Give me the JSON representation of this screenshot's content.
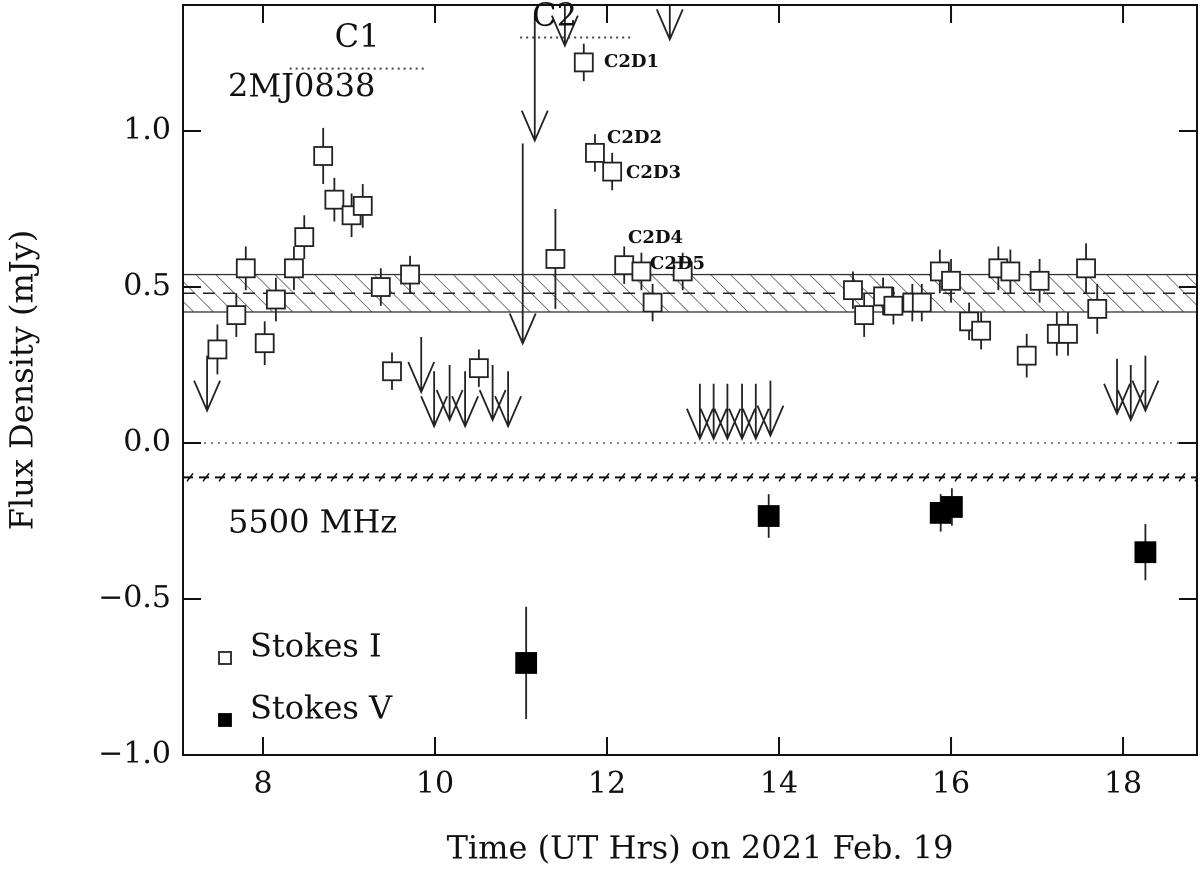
{
  "chart_data": {
    "type": "scatter",
    "xlabel": "Time (UT Hrs) on 2021 Feb. 19",
    "ylabel": "Flux Density (mJy)",
    "xlim": [
      7.07,
      18.86
    ],
    "ylim": [
      -1.0,
      1.404
    ],
    "xticks": [
      8,
      10,
      12,
      14,
      16,
      18
    ],
    "yticks": [
      {
        "value": -1.0,
        "label": "−1.0"
      },
      {
        "value": -0.5,
        "label": "−0.5"
      },
      {
        "value": 0.0,
        "label": "0.0"
      },
      0.5,
      {
        "value": 1.0,
        "label": "1.0"
      }
    ],
    "legend": "lower left",
    "series": [
      {
        "name": "Stokes I",
        "marker": "open-square",
        "color": "#222",
        "x": [
          7.47,
          7.69,
          7.8,
          8.02,
          8.15,
          8.36,
          8.48,
          8.7,
          8.83,
          9.03,
          9.16,
          9.37,
          9.5,
          9.71,
          10.51,
          11.4,
          11.73,
          11.86,
          12.06,
          12.2,
          12.4,
          12.53,
          12.88,
          14.86,
          14.99,
          15.21,
          15.33,
          15.55,
          15.66,
          15.87,
          16.0,
          16.21,
          16.35,
          16.55,
          16.69,
          16.88,
          17.03,
          17.23,
          17.36,
          17.57,
          17.7
        ],
        "values": [
          0.3,
          0.41,
          0.56,
          0.32,
          0.46,
          0.56,
          0.66,
          0.92,
          0.78,
          0.73,
          0.76,
          0.5,
          0.23,
          0.54,
          0.24,
          0.59,
          1.22,
          0.93,
          0.87,
          0.57,
          0.55,
          0.45,
          0.55,
          0.49,
          0.41,
          0.47,
          0.44,
          0.45,
          0.45,
          0.55,
          0.52,
          0.39,
          0.36,
          0.56,
          0.55,
          0.28,
          0.52,
          0.35,
          0.35,
          0.56,
          0.43
        ],
        "errors": [
          0.08,
          0.07,
          0.07,
          0.07,
          0.07,
          0.07,
          0.07,
          0.09,
          0.07,
          0.07,
          0.07,
          0.06,
          0.06,
          0.06,
          0.06,
          0.16,
          0.06,
          0.06,
          0.06,
          0.06,
          0.06,
          0.06,
          0.06,
          0.06,
          0.07,
          0.06,
          0.06,
          0.06,
          0.06,
          0.07,
          0.07,
          0.06,
          0.06,
          0.07,
          0.07,
          0.07,
          0.07,
          0.07,
          0.07,
          0.08,
          0.08
        ]
      },
      {
        "name": "Stokes V",
        "marker": "filled-square",
        "color": "#000",
        "x": [
          11.06,
          13.88,
          15.88,
          16.01,
          18.26
        ],
        "values": [
          -0.705,
          -0.234,
          -0.224,
          -0.205,
          -0.35
        ],
        "errors": [
          0.18,
          0.07,
          0.06,
          0.06,
          0.09
        ]
      }
    ],
    "upper_limits": {
      "x": [
        7.35,
        9.84,
        9.99,
        10.17,
        10.35,
        10.67,
        10.85,
        11.02,
        11.16,
        11.51,
        12.73,
        13.08,
        13.24,
        13.4,
        13.57,
        13.73,
        13.9,
        17.93,
        18.09,
        18.26
      ],
      "values": [
        0.28,
        0.34,
        0.23,
        0.25,
        0.23,
        0.25,
        0.23,
        0.96,
        1.37,
        1.45,
        1.47,
        0.19,
        0.19,
        0.19,
        0.19,
        0.19,
        0.2,
        0.27,
        0.25,
        0.28
      ]
    },
    "band": {
      "center": 0.48,
      "halfwidth": 0.06
    },
    "zero_line": 0.0,
    "separator": -0.11,
    "segments": [
      {
        "label": "C1",
        "x": [
          8.31,
          9.88
        ],
        "y": 1.2
      },
      {
        "label": "C2",
        "x": [
          10.99,
          12.27
        ],
        "y": 1.3
      }
    ],
    "annotations": [
      "2MJ0838",
      "5500 MHz",
      "C2D1",
      "C2D2",
      "C2D3",
      "C2D4",
      "C2D5"
    ]
  }
}
